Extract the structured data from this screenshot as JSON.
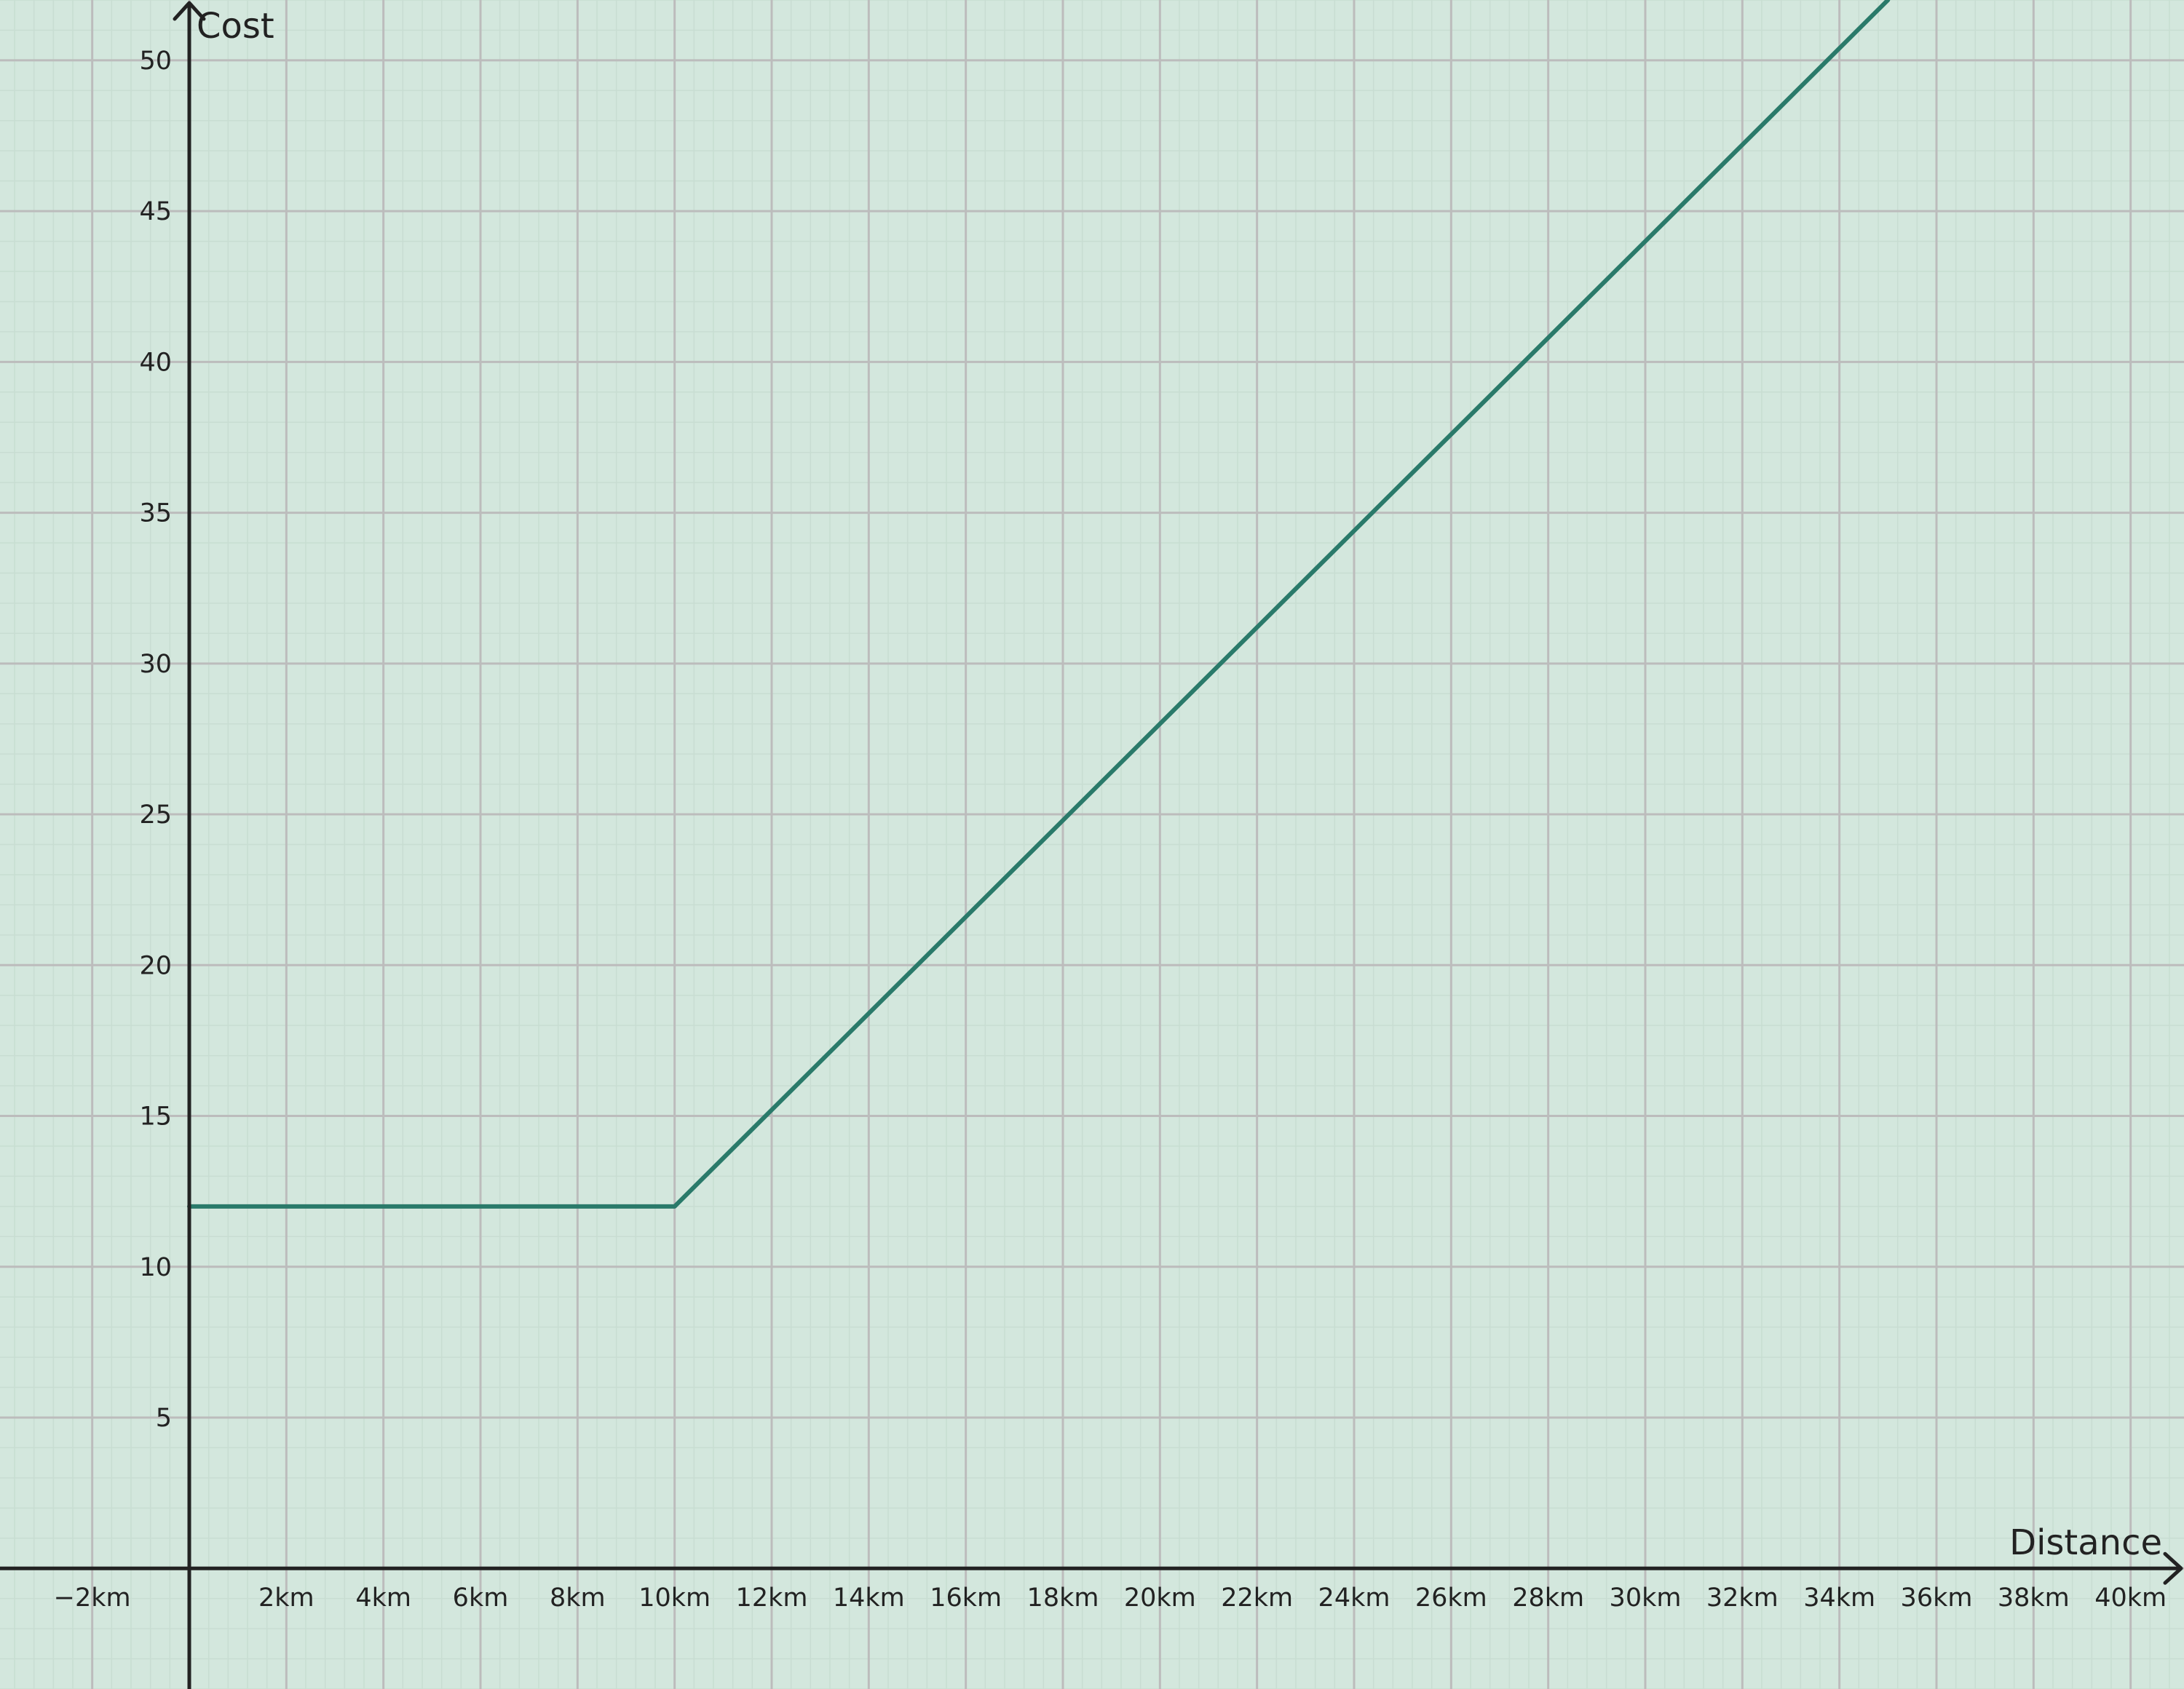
{
  "chart_data": {
    "type": "line",
    "title": "",
    "xlabel": "Distance",
    "ylabel": "Cost",
    "xlim": [
      -3.9,
      41.1
    ],
    "ylim": [
      -4.0,
      52.0
    ],
    "x_ticks": [
      {
        "value": -2,
        "label": "−2km"
      },
      {
        "value": 2,
        "label": "2km"
      },
      {
        "value": 4,
        "label": "4km"
      },
      {
        "value": 6,
        "label": "6km"
      },
      {
        "value": 8,
        "label": "8km"
      },
      {
        "value": 10,
        "label": "10km"
      },
      {
        "value": 12,
        "label": "12km"
      },
      {
        "value": 14,
        "label": "14km"
      },
      {
        "value": 16,
        "label": "16km"
      },
      {
        "value": 18,
        "label": "18km"
      },
      {
        "value": 20,
        "label": "20km"
      },
      {
        "value": 22,
        "label": "22km"
      },
      {
        "value": 24,
        "label": "24km"
      },
      {
        "value": 26,
        "label": "26km"
      },
      {
        "value": 28,
        "label": "28km"
      },
      {
        "value": 30,
        "label": "30km"
      },
      {
        "value": 32,
        "label": "32km"
      },
      {
        "value": 34,
        "label": "34km"
      },
      {
        "value": 36,
        "label": "36km"
      },
      {
        "value": 38,
        "label": "38km"
      },
      {
        "value": 40,
        "label": "40km"
      }
    ],
    "y_ticks": [
      {
        "value": 5,
        "label": "5"
      },
      {
        "value": 10,
        "label": "10"
      },
      {
        "value": 15,
        "label": "15"
      },
      {
        "value": 20,
        "label": "20"
      },
      {
        "value": 25,
        "label": "25"
      },
      {
        "value": 30,
        "label": "30"
      },
      {
        "value": 35,
        "label": "35"
      },
      {
        "value": 40,
        "label": "40"
      },
      {
        "value": 45,
        "label": "45"
      },
      {
        "value": 50,
        "label": "50"
      }
    ],
    "grid": true,
    "series": [
      {
        "name": "cost",
        "color": "#2a7a6a",
        "points": [
          [
            0,
            12
          ],
          [
            10,
            12
          ],
          [
            35,
            52
          ]
        ]
      }
    ],
    "colors": {
      "background": "#d3e7dd",
      "major_grid": "#bcbcbc",
      "minor_grid": "#c8ddd2",
      "axis": "#222222"
    }
  }
}
